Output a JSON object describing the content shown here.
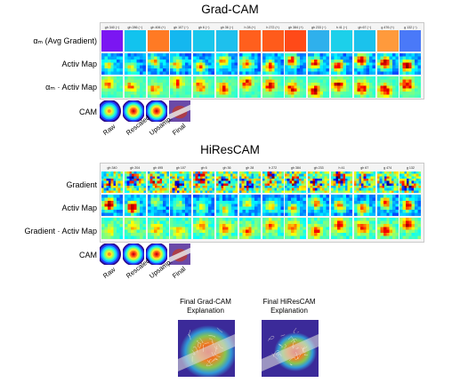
{
  "gradcam": {
    "title": "Grad-CAM",
    "columns": [
      "gh 340 (−)",
      "gh 286 (−)",
      "gh 406 (+)",
      "gh 107 (−)",
      "gh 6 (−)",
      "gh 36 (−)",
      "h 28 (+)",
      "h 272 (+)",
      "gh 384 (+)",
      "gh 233 (−)",
      "h 41 (−)",
      "gh 67 (−)",
      "g 476 (+)",
      "g 132 (−)"
    ],
    "rows": [
      {
        "label": "αₘ (Avg Gradient)"
      },
      {
        "label": "Activ Map"
      },
      {
        "label": "αₘ · Activ Map"
      }
    ],
    "cam_label": "CAM",
    "cam_steps": [
      "Raw",
      "Rescaled",
      "Upsamp.",
      "Final"
    ],
    "alpha_colors": [
      "#7b16f2",
      "#12c3ee",
      "#ff7a24",
      "#14b7ef",
      "#19c6ec",
      "#1ec0ed",
      "#ff5f1d",
      "#ff5b1b",
      "#ff4a18",
      "#2fb0ec",
      "#1cd0ea",
      "#1bc2ec",
      "#ff9a3c",
      "#4a79f8"
    ]
  },
  "hirescam": {
    "title": "HiResCAM",
    "columns": [
      "gh 340",
      "gh 204",
      "gh 495",
      "gh 107",
      "gh 6",
      "gh 36",
      "gh 28",
      "h 272",
      "gh 384",
      "gh 233",
      "h 41",
      "gh 67",
      "g 474",
      "g 132"
    ],
    "rows": [
      {
        "label": "Gradient"
      },
      {
        "label": "Activ Map"
      },
      {
        "label": "Gradient · Activ Map"
      }
    ],
    "cam_label": "CAM",
    "cam_steps": [
      "Raw",
      "Rescaled",
      "Upsamp.",
      "Final"
    ]
  },
  "final": {
    "gradcam_caption": [
      "Final Grad-CAM",
      "Explanation"
    ],
    "hirescam_caption": [
      "Final HiResCAM",
      "Explanation"
    ]
  }
}
